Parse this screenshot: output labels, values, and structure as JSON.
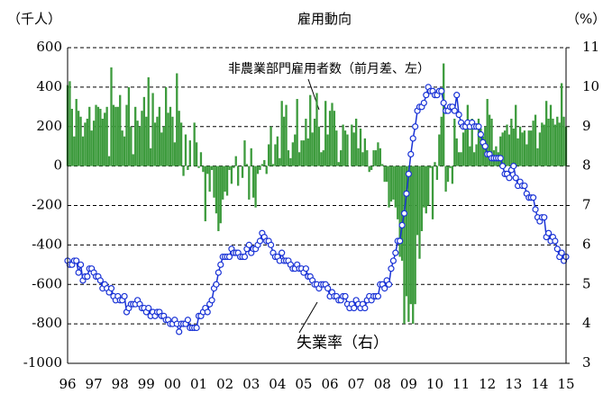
{
  "chart_data": {
    "type": "bar",
    "title": "雇用動向",
    "y_label": "（千人）",
    "y2_label": "（%）",
    "categories": [
      "96",
      null,
      null,
      null,
      null,
      null,
      null,
      null,
      null,
      null,
      null,
      null,
      "97",
      null,
      null,
      null,
      null,
      null,
      null,
      null,
      null,
      null,
      null,
      null,
      "98",
      null,
      null,
      null,
      null,
      null,
      null,
      null,
      null,
      null,
      null,
      null,
      "99",
      null,
      null,
      null,
      null,
      null,
      null,
      null,
      null,
      null,
      null,
      null,
      "00",
      null,
      null,
      null,
      null,
      null,
      null,
      null,
      null,
      null,
      null,
      null,
      "01",
      null,
      null,
      null,
      null,
      null,
      null,
      null,
      null,
      null,
      null,
      null,
      "02",
      null,
      null,
      null,
      null,
      null,
      null,
      null,
      null,
      null,
      null,
      null,
      "03",
      null,
      null,
      null,
      null,
      null,
      null,
      null,
      null,
      null,
      null,
      null,
      "04",
      null,
      null,
      null,
      null,
      null,
      null,
      null,
      null,
      null,
      null,
      null,
      "05",
      null,
      null,
      null,
      null,
      null,
      null,
      null,
      null,
      null,
      null,
      null,
      "06",
      null,
      null,
      null,
      null,
      null,
      null,
      null,
      null,
      null,
      null,
      null,
      "07",
      null,
      null,
      null,
      null,
      null,
      null,
      null,
      null,
      null,
      null,
      null,
      "08",
      null,
      null,
      null,
      null,
      null,
      null,
      null,
      null,
      null,
      null,
      null,
      "09",
      null,
      null,
      null,
      null,
      null,
      null,
      null,
      null,
      null,
      null,
      null,
      "10",
      null,
      null,
      null,
      null,
      null,
      null,
      null,
      null,
      null,
      null,
      null,
      "11",
      null,
      null,
      null,
      null,
      null,
      null,
      null,
      null,
      null,
      null,
      null,
      "12",
      null,
      null,
      null,
      null,
      null,
      null,
      null,
      null,
      null,
      null,
      null,
      "13",
      null,
      null,
      null,
      null,
      null,
      null,
      null,
      null,
      null,
      null,
      null,
      "14",
      null,
      null,
      null,
      null,
      null,
      null,
      null,
      null,
      null,
      null,
      null,
      "15"
    ],
    "series": [
      {
        "name": "非農業部門雇用者数（前月差、左）",
        "color": "#3d9b3d",
        "values": [
          410,
          430,
          290,
          150,
          340,
          280,
          250,
          150,
          220,
          240,
          300,
          180,
          230,
          310,
          300,
          290,
          240,
          270,
          300,
          50,
          500,
          310,
          300,
          300,
          360,
          180,
          150,
          310,
          400,
          200,
          60,
          300,
          230,
          200,
          280,
          350,
          250,
          450,
          90,
          370,
          220,
          250,
          300,
          170,
          200,
          400,
          270,
          300,
          250,
          120,
          470,
          280,
          220,
          -50,
          160,
          -20,
          130,
          0,
          220,
          120,
          -10,
          70,
          -30,
          -280,
          -40,
          -130,
          -20,
          -160,
          -240,
          -330,
          -290,
          -170,
          -130,
          -150,
          -20,
          -90,
          -10,
          50,
          -100,
          0,
          -60,
          130,
          10,
          -170,
          90,
          -160,
          -210,
          -40,
          -20,
          10,
          30,
          -40,
          110,
          200,
          10,
          110,
          150,
          40,
          330,
          250,
          310,
          80,
          40,
          120,
          160,
          340,
          70,
          130,
          130,
          240,
          140,
          360,
          170,
          240,
          370,
          200,
          70,
          80,
          330,
          160,
          280,
          320,
          280,
          180,
          20,
          80,
          210,
          180,
          160,
          0,
          210,
          170,
          240,
          90,
          190,
          70,
          140,
          80,
          -30,
          -20,
          80,
          80,
          120,
          90,
          10,
          -80,
          -80,
          -210,
          -180,
          -170,
          -210,
          -270,
          -460,
          -480,
          -800,
          -660,
          -790,
          -700,
          -800,
          -700,
          -350,
          -470,
          -330,
          -210,
          -240,
          -200,
          -10,
          -270,
          20,
          -70,
          160,
          250,
          520,
          -130,
          -80,
          -10,
          -90,
          240,
          140,
          70,
          70,
          170,
          210,
          310,
          100,
          240,
          70,
          110,
          240,
          190,
          150,
          200,
          340,
          260,
          240,
          80,
          100,
          70,
          150,
          170,
          180,
          210,
          160,
          240,
          190,
          310,
          140,
          200,
          170,
          180,
          110,
          180,
          180,
          230,
          260,
          90,
          170,
          220,
          210,
          330,
          240,
          310,
          240,
          210,
          250,
          220,
          420,
          250,
          200
        ]
      },
      {
        "name": "失業率（右）",
        "color": "#1a33d6",
        "axis": "y2",
        "type": "line",
        "values": [
          5.6,
          5.5,
          5.5,
          5.6,
          5.6,
          5.3,
          5.5,
          5.1,
          5.2,
          5.2,
          5.4,
          5.4,
          5.3,
          5.2,
          5.2,
          5.1,
          4.9,
          5.0,
          4.9,
          4.8,
          4.9,
          4.7,
          4.6,
          4.7,
          4.6,
          4.6,
          4.7,
          4.3,
          4.4,
          4.5,
          4.5,
          4.5,
          4.6,
          4.5,
          4.4,
          4.4,
          4.3,
          4.4,
          4.2,
          4.3,
          4.2,
          4.3,
          4.3,
          4.2,
          4.2,
          4.1,
          4.1,
          4.0,
          4.0,
          4.1,
          4.0,
          3.8,
          4.0,
          4.0,
          4.0,
          4.1,
          3.9,
          3.9,
          3.9,
          3.9,
          4.2,
          4.2,
          4.3,
          4.4,
          4.3,
          4.5,
          4.6,
          4.9,
          5.0,
          5.3,
          5.5,
          5.7,
          5.7,
          5.7,
          5.7,
          5.9,
          5.8,
          5.8,
          5.8,
          5.7,
          5.7,
          5.7,
          5.9,
          6.0,
          5.8,
          5.9,
          5.9,
          6.0,
          6.1,
          6.3,
          6.2,
          6.1,
          6.1,
          6.0,
          5.8,
          5.7,
          5.7,
          5.6,
          5.8,
          5.6,
          5.6,
          5.6,
          5.5,
          5.4,
          5.4,
          5.5,
          5.4,
          5.4,
          5.3,
          5.4,
          5.2,
          5.2,
          5.1,
          5.0,
          5.0,
          4.9,
          5.0,
          5.0,
          5.0,
          4.9,
          4.7,
          4.8,
          4.7,
          4.7,
          4.6,
          4.6,
          4.7,
          4.7,
          4.5,
          4.4,
          4.5,
          4.4,
          4.6,
          4.5,
          4.4,
          4.5,
          4.4,
          4.6,
          4.7,
          4.6,
          4.7,
          4.7,
          4.7,
          5.0,
          5.0,
          4.9,
          5.1,
          5.0,
          5.4,
          5.6,
          5.8,
          6.1,
          6.1,
          6.5,
          6.8,
          7.3,
          7.8,
          8.3,
          8.7,
          9.0,
          9.4,
          9.5,
          9.5,
          9.6,
          9.8,
          10.0,
          9.9,
          9.9,
          9.8,
          9.8,
          9.9,
          9.9,
          9.6,
          9.4,
          9.4,
          9.5,
          9.5,
          9.4,
          9.8,
          9.3,
          9.1,
          9.0,
          9.0,
          9.1,
          9.0,
          9.1,
          9.0,
          9.0,
          9.0,
          8.8,
          8.6,
          8.5,
          8.3,
          8.3,
          8.2,
          8.2,
          8.2,
          8.2,
          8.2,
          8.0,
          7.8,
          7.8,
          7.7,
          7.9,
          8.0,
          7.7,
          7.5,
          7.6,
          7.5,
          7.5,
          7.3,
          7.2,
          7.2,
          7.2,
          6.9,
          6.7,
          6.6,
          6.7,
          6.7,
          6.2,
          6.3,
          6.1,
          6.2,
          6.1,
          5.9,
          5.7,
          5.8,
          5.6,
          5.7
        ]
      }
    ],
    "ylim": [
      -1000,
      600
    ],
    "yticks": [
      -1000,
      -800,
      -600,
      -400,
      -200,
      0,
      200,
      400,
      600
    ],
    "y2lim": [
      3,
      11
    ],
    "y2ticks": [
      3,
      4,
      5,
      6,
      7,
      8,
      9,
      10,
      11
    ],
    "grid": true
  }
}
